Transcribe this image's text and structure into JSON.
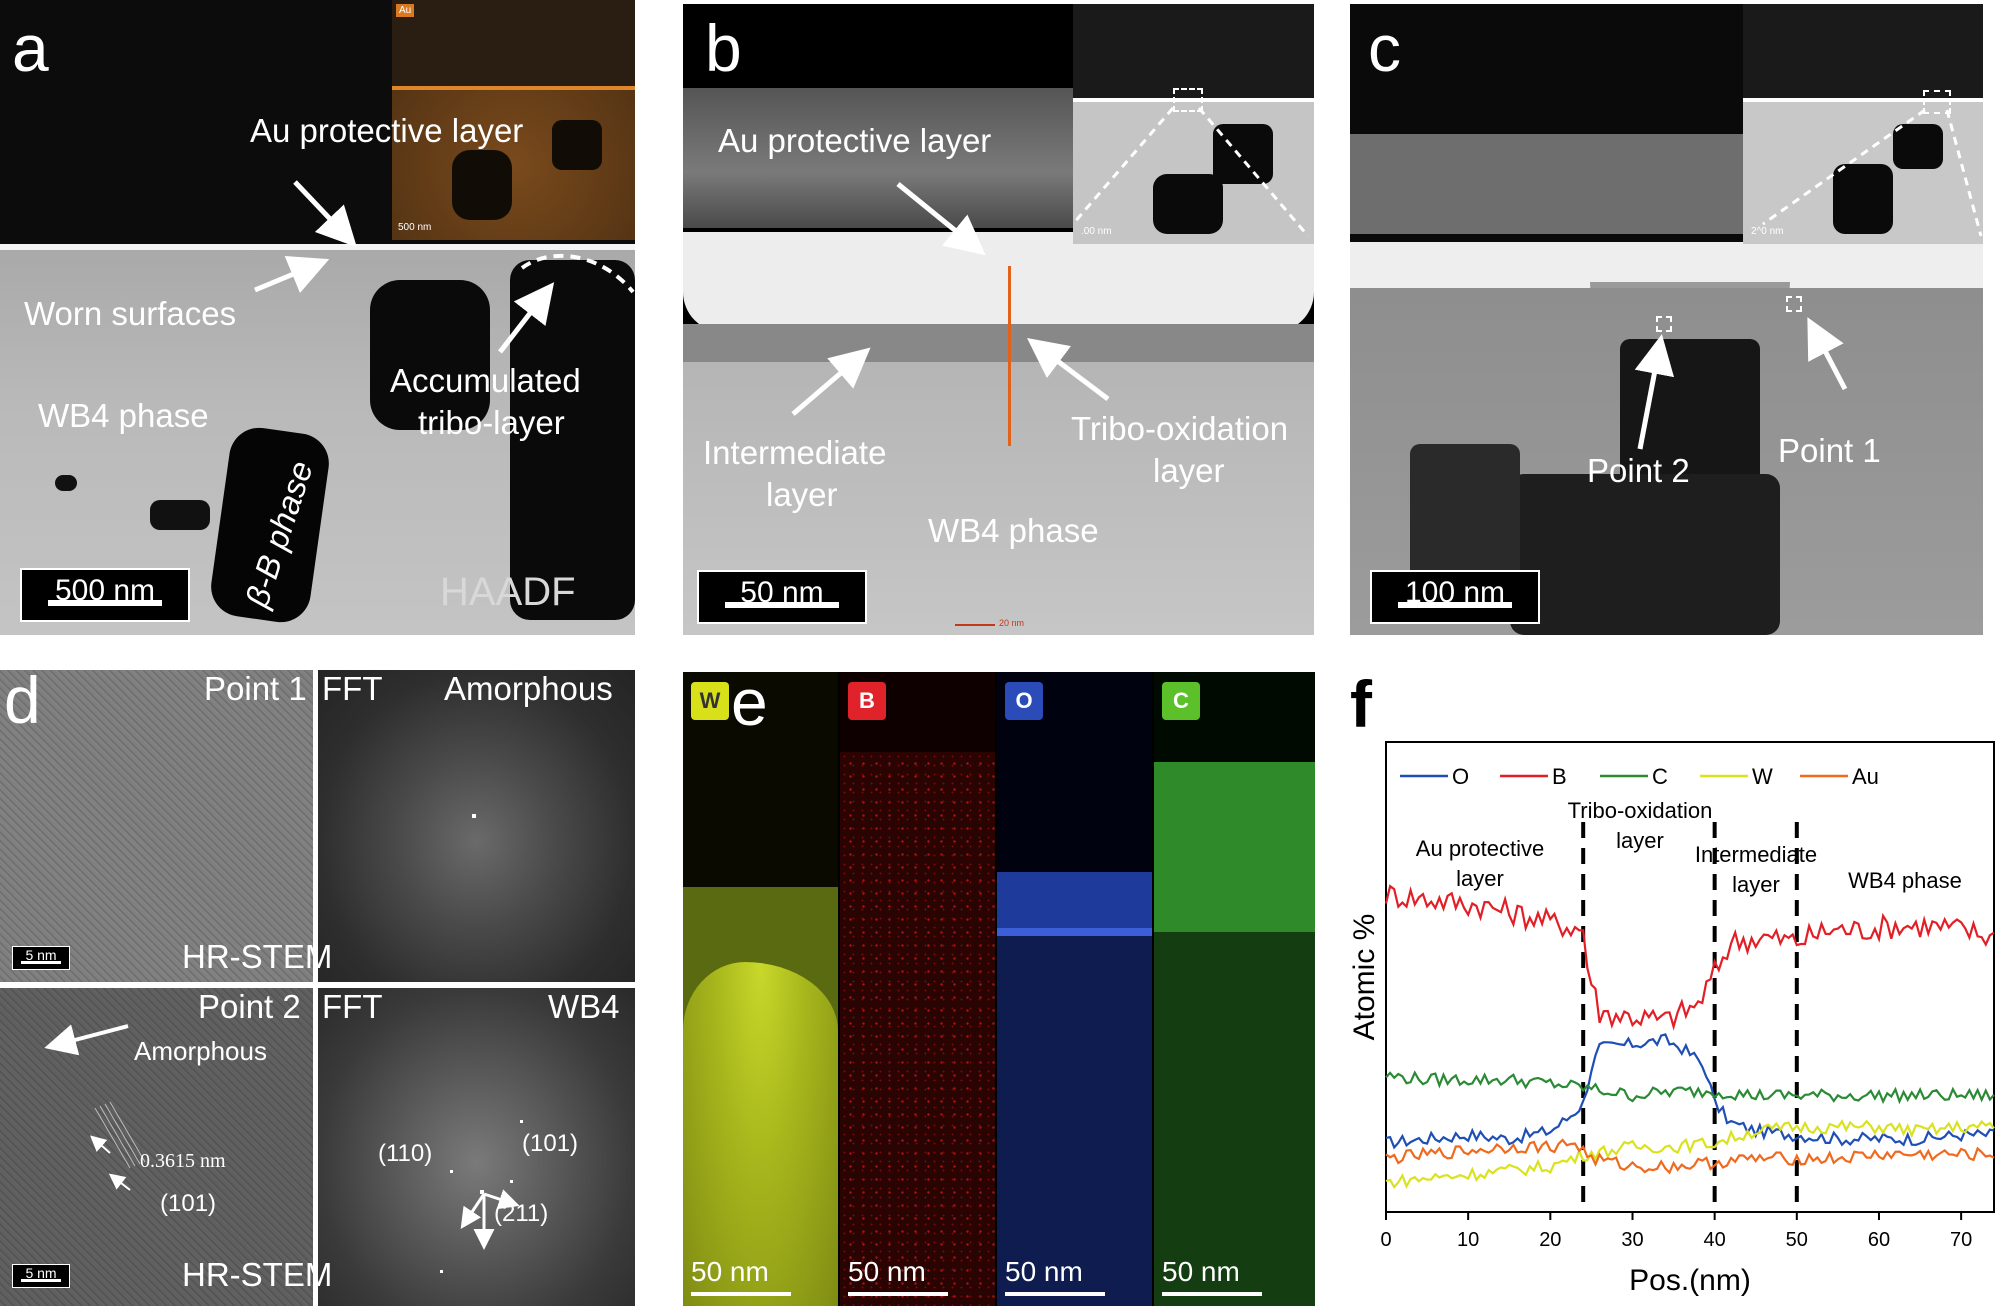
{
  "panel_a": {
    "letter": "a",
    "inset_tag": "Au",
    "inset_scale": "500 nm",
    "au_label": "Au protective layer",
    "worn_label": "Worn surfaces",
    "wb4_label": "WB4  phase",
    "tribo_label_1": "Accumulated",
    "tribo_label_2": "tribo-layer",
    "beta_label": "β-B phase",
    "mode": "HAADF",
    "scale": "500 nm"
  },
  "panel_b": {
    "letter": "b",
    "au_label": "Au protective layer",
    "inter_1": "Intermediate",
    "inter_2": "layer",
    "tribo_1": "Tribo-oxidation",
    "tribo_2": "layer",
    "wb4_label": "WB4 phase",
    "inset_scale": ".00 nm",
    "scale": "50 nm",
    "tiny_scale": "20 nm"
  },
  "panel_c": {
    "letter": "c",
    "point2": "Point 2",
    "point1": "Point 1",
    "inset_scale": "2^0 nm",
    "scale": "100 nm"
  },
  "panel_d": {
    "letter": "d",
    "point1": "Point 1",
    "fft": "FFT",
    "amorphous": "Amorphous",
    "small_scale": "5 nm",
    "hrstem": "HR-STEM",
    "point2": "Point 2",
    "wb4": "WB4",
    "amorphous_arrow": "Amorphous",
    "d_spacing": "0.3615  nm",
    "plane_101": "(101)",
    "fft_110": "(110)",
    "fft_101": "(101)",
    "fft_211": "(211)"
  },
  "panel_e": {
    "letter": "e",
    "maps": [
      {
        "element": "W",
        "color": "#d8e01a",
        "scale": "50 nm"
      },
      {
        "element": "B",
        "color": "#e0232a",
        "scale": "50 nm"
      },
      {
        "element": "O",
        "color": "#2b4bb8",
        "scale": "50 nm"
      },
      {
        "element": "C",
        "color": "#5cc02a",
        "scale": "50 nm"
      }
    ]
  },
  "panel_f": {
    "letter": "f"
  },
  "chart_data": {
    "type": "line",
    "xlabel": "Pos.(nm)",
    "ylabel": "Atomic %",
    "xlim": [
      0,
      74
    ],
    "xticks": [
      0,
      10,
      20,
      30,
      40,
      50,
      60,
      70
    ],
    "y_ticks_shown": false,
    "legend": {
      "placement": "top",
      "entries": [
        "O",
        "B",
        "C",
        "W",
        "Au"
      ]
    },
    "series": [
      {
        "name": "O",
        "color": "#1f4fb5",
        "x": [
          0,
          5,
          10,
          15,
          20,
          22,
          24,
          25,
          26,
          30,
          34,
          36,
          38,
          39,
          40,
          42,
          45,
          50,
          55,
          60,
          65,
          70,
          74
        ],
        "y": [
          15,
          16,
          17,
          16,
          18,
          21,
          25,
          34,
          39,
          40,
          41,
          39,
          36,
          33,
          25,
          20,
          18,
          17,
          16,
          16,
          16,
          17,
          17
        ]
      },
      {
        "name": "B",
        "color": "#e21f26",
        "x": [
          0,
          4,
          8,
          12,
          16,
          20,
          24,
          24.5,
          26,
          30,
          34,
          38,
          40,
          42,
          46,
          50,
          54,
          58,
          62,
          66,
          70,
          74
        ],
        "y": [
          78,
          77,
          76,
          75,
          73,
          71,
          69,
          60,
          48,
          47,
          46,
          50,
          58,
          66,
          67,
          66,
          69,
          69,
          70,
          70,
          69,
          67
        ]
      },
      {
        "name": "C",
        "color": "#2a8a35",
        "x": [
          0,
          5,
          10,
          15,
          20,
          24,
          30,
          35,
          40,
          45,
          50,
          55,
          60,
          65,
          70,
          74
        ],
        "y": [
          32,
          31,
          31,
          31,
          30,
          29,
          27,
          28,
          28,
          27,
          27,
          27,
          27,
          27,
          27,
          27
        ]
      },
      {
        "name": "W",
        "color": "#d9e21e",
        "x": [
          0,
          5,
          10,
          15,
          20,
          24,
          30,
          35,
          40,
          45,
          50,
          55,
          60,
          65,
          70,
          74
        ],
        "y": [
          5,
          6,
          7,
          8,
          9,
          12,
          14,
          14,
          15,
          18,
          19,
          19,
          19,
          18,
          19,
          19
        ]
      },
      {
        "name": "Au",
        "color": "#ef6a1f",
        "x": [
          0,
          5,
          10,
          15,
          20,
          23,
          25,
          30,
          35,
          40,
          45,
          50,
          55,
          60,
          65,
          70,
          74
        ],
        "y": [
          11,
          12,
          13,
          14,
          14,
          15,
          11,
          9,
          9,
          10,
          11,
          11,
          11,
          12,
          12,
          12,
          12
        ]
      }
    ],
    "annotations": [
      {
        "text": [
          "Au protective",
          "layer"
        ]
      },
      {
        "text": [
          "Tribo-oxidation",
          "layer"
        ]
      },
      {
        "text": [
          "Intermediate",
          "layer"
        ]
      },
      {
        "text": [
          "WB4 phase"
        ]
      }
    ],
    "boundaries_x": [
      24,
      40,
      50
    ]
  }
}
